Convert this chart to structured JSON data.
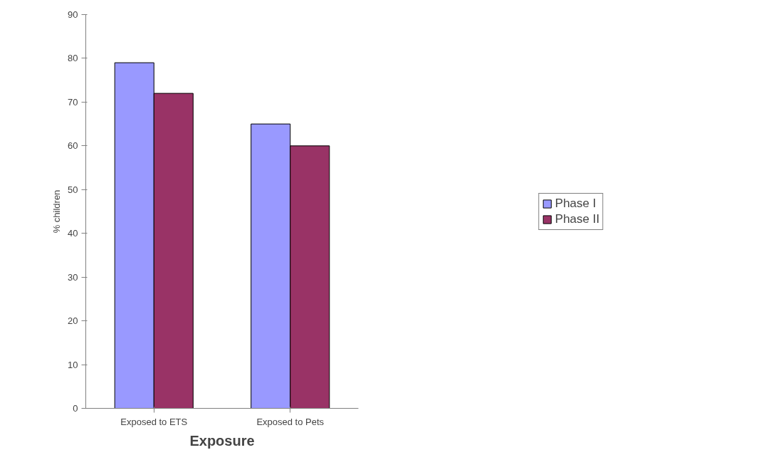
{
  "chart_data": {
    "type": "bar",
    "xlabel": "Exposure",
    "ylabel": "% children",
    "categories": [
      "Exposed to ETS",
      "Exposed to Pets"
    ],
    "series": [
      {
        "name": "Phase I",
        "color": "#9999ff",
        "values": [
          79,
          65
        ]
      },
      {
        "name": "Phase II",
        "color": "#993366",
        "values": [
          72,
          60
        ]
      }
    ],
    "ylim": [
      0,
      90
    ],
    "yticks": [
      0,
      10,
      20,
      30,
      40,
      50,
      60,
      70,
      80,
      90
    ],
    "grid": false,
    "legend": "right"
  }
}
